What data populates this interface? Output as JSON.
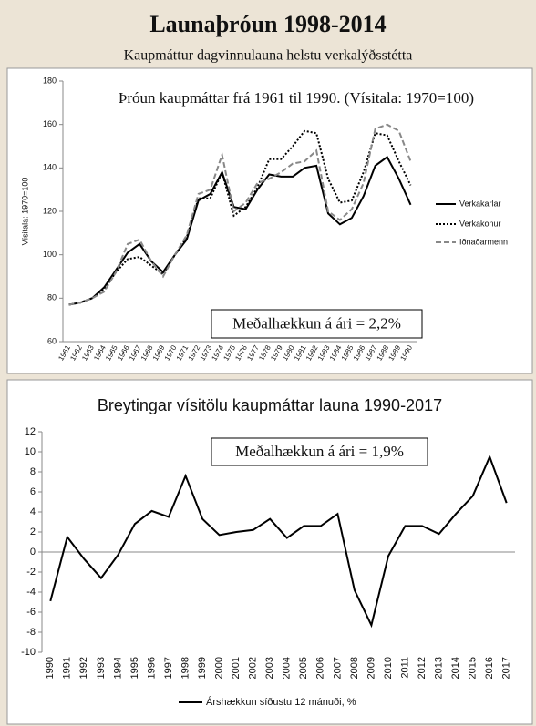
{
  "header": {
    "title": "Launaþróun 1998-2014",
    "subtitle": "Kaupmáttur dagvinnulauna helstu verkalýðsstétta"
  },
  "chart_data": [
    {
      "type": "line",
      "title": "Þróun kaupmáttar frá 1961 til 1990. (Vísitala: 1970=100)",
      "ylabel": "Vísitala: 1970=100",
      "annotation": "Meðalhækkun á ári = 2,2%",
      "legend": "right",
      "categories": [
        "1961",
        "1962",
        "1963",
        "1964",
        "1965",
        "1966",
        "1967",
        "1968",
        "1969",
        "1970",
        "1971",
        "1972",
        "1973",
        "1974",
        "1975",
        "1976",
        "1977",
        "1978",
        "1979",
        "1980",
        "1981",
        "1982",
        "1983",
        "1984",
        "1985",
        "1986",
        "1987",
        "1988",
        "1989",
        "1990"
      ],
      "series": [
        {
          "name": "Verkakarlar",
          "color": "#000000",
          "style": "solid",
          "values": [
            77,
            78,
            80,
            85,
            93,
            101,
            105,
            97,
            92,
            100,
            107,
            125,
            128,
            138,
            122,
            121,
            130,
            137,
            136,
            136,
            140,
            141,
            119,
            114,
            117,
            127,
            141,
            145,
            135,
            123
          ]
        },
        {
          "name": "Verkakonur",
          "color": "#000000",
          "style": "dotted",
          "values": [
            77,
            78,
            80,
            84,
            92,
            98,
            99,
            95,
            91,
            100,
            108,
            126,
            126,
            138,
            118,
            122,
            131,
            144,
            144,
            150,
            157,
            156,
            135,
            124,
            125,
            138,
            156,
            155,
            143,
            132
          ]
        },
        {
          "name": "Iðnaðarmenn",
          "color": "#888888",
          "style": "dashed",
          "values": [
            77,
            78,
            80,
            83,
            92,
            105,
            107,
            97,
            90,
            100,
            109,
            128,
            130,
            146,
            120,
            124,
            133,
            135,
            138,
            142,
            143,
            148,
            120,
            116,
            121,
            133,
            158,
            160,
            157,
            143
          ]
        }
      ],
      "ylim": [
        60,
        180
      ],
      "yticks": [
        60,
        80,
        100,
        120,
        140,
        160,
        180
      ]
    },
    {
      "type": "line",
      "title": "Breytingar vísitölu kaupmáttar launa 1990-2017",
      "annotation": "Meðalhækkun á ári = 1,9%",
      "legend": "bottom",
      "categories": [
        "1990",
        "1991",
        "1992",
        "1993",
        "1994",
        "1995",
        "1996",
        "1997",
        "1998",
        "1999",
        "2000",
        "2001",
        "2002",
        "2003",
        "2004",
        "2005",
        "2006",
        "2007",
        "2008",
        "2009",
        "2010",
        "2011",
        "2012",
        "2013",
        "2014",
        "2015",
        "2016",
        "2017"
      ],
      "series": [
        {
          "name": "Árshækkun síðustu 12 mánuði, %",
          "color": "#000000",
          "style": "solid",
          "values": [
            -4.9,
            1.5,
            -0.7,
            -2.6,
            -0.3,
            2.8,
            4.1,
            3.5,
            7.6,
            3.3,
            1.7,
            2.0,
            2.2,
            3.3,
            1.4,
            2.6,
            2.6,
            3.8,
            -3.8,
            -7.3,
            -0.4,
            2.6,
            2.6,
            1.8,
            3.8,
            5.6,
            9.5,
            4.9
          ]
        }
      ],
      "ylim": [
        -10,
        12
      ],
      "yticks": [
        -10,
        -8,
        -6,
        -4,
        -2,
        0,
        2,
        4,
        6,
        8,
        10,
        12
      ]
    }
  ]
}
